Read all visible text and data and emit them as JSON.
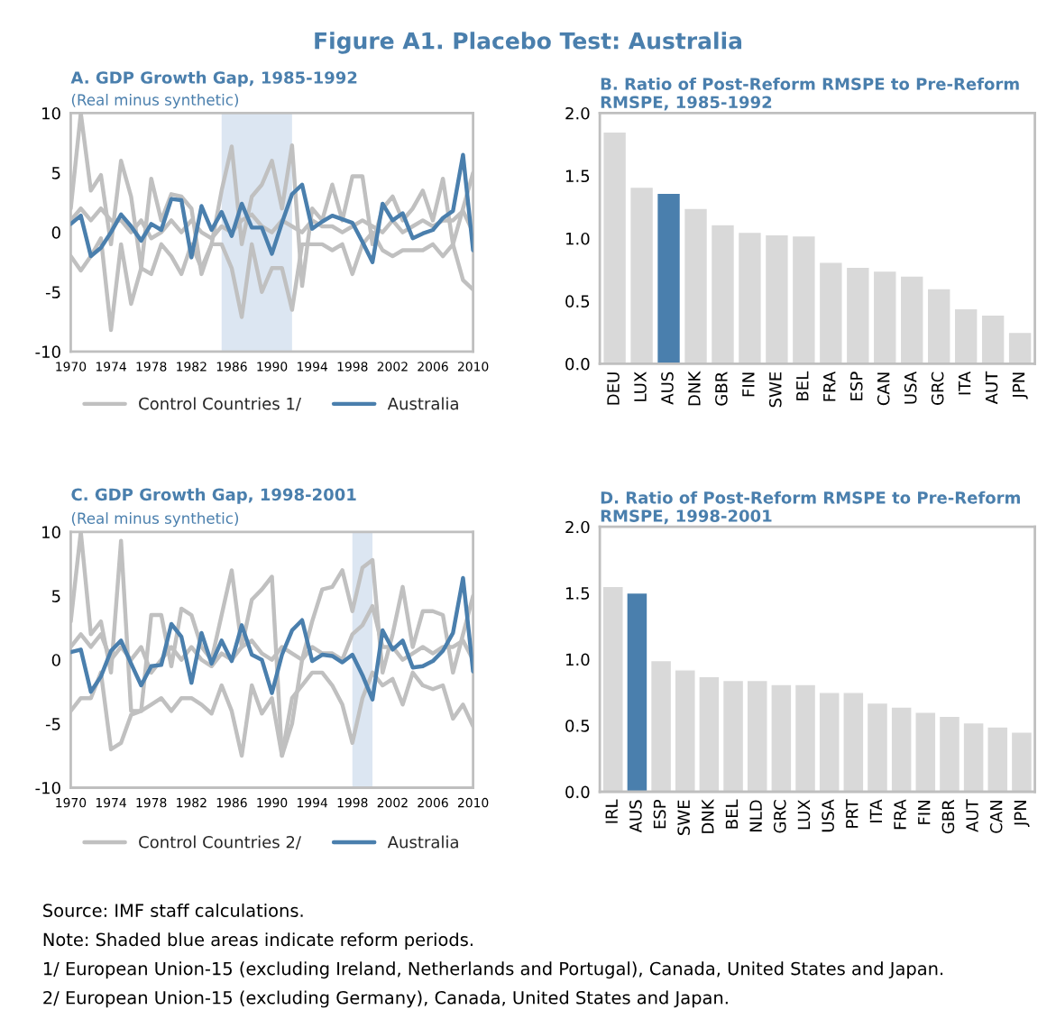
{
  "chart_data": [
    {
      "type": "other",
      "title": "Figure A1. Placebo Test: Australia",
      "annotations": [
        "Source: IMF staff calculations.",
        "Note: Shaded blue areas indicate reform periods.",
        "1/ European Union-15 (excluding Ireland, Netherlands and Portugal), Canada, United States and Japan.",
        "2/ European Union-15 (excluding Germany), Canada, United States and Japan."
      ]
    },
    {
      "type": "line",
      "title": "A. GDP Growth Gap, 1985-1992",
      "subtitle": "(Real minus synthetic)",
      "x": [
        1970,
        1971,
        1972,
        1973,
        1974,
        1975,
        1976,
        1977,
        1978,
        1979,
        1980,
        1981,
        1982,
        1983,
        1984,
        1985,
        1986,
        1987,
        1988,
        1989,
        1990,
        1991,
        1992,
        1993,
        1994,
        1995,
        1996,
        1997,
        1998,
        1999,
        2000,
        2001,
        2002,
        2003,
        2004,
        2005,
        2006,
        2007,
        2008,
        2009,
        2010
      ],
      "series": [
        {
          "name": "Control Countries 1/",
          "color": "#c0c0c0",
          "values": [
            2,
            10,
            3.5,
            4.8,
            -1,
            6,
            3,
            -3,
            4.5,
            1,
            3.2,
            3,
            2,
            -3.5,
            -1,
            3.5,
            7.2,
            -1,
            3,
            4,
            6,
            2,
            7.3,
            -4.5,
            2,
            1,
            4,
            1,
            4.7,
            4.7,
            -1,
            2,
            3,
            1,
            2,
            3.5,
            1,
            4.5,
            -1,
            2,
            5
          ]
        },
        {
          "color": "#c0c0c0",
          "values": [
            -2,
            -3.2,
            -2,
            -0.5,
            -8.2,
            -1,
            -6,
            -3,
            -3.5,
            -1,
            -2,
            -3.5,
            -1,
            -3,
            -1,
            -1,
            -3,
            -7.1,
            -1,
            -5,
            -3,
            -3,
            -6.5,
            -1,
            -1,
            -1,
            -1.5,
            -1,
            -3.5,
            -1,
            0,
            -1.5,
            -2,
            -1.5,
            -1.5,
            -1.5,
            -1,
            -2,
            -1,
            -4,
            -4.8
          ]
        },
        {
          "color": "#c0c0c0",
          "values": [
            1,
            2,
            1,
            2,
            1,
            1,
            0,
            1,
            -0.5,
            0,
            1,
            0,
            1,
            0,
            -0.5,
            0.5,
            0,
            1,
            1.5,
            0.5,
            0,
            1,
            0.5,
            0,
            1,
            0.5,
            0.5,
            0,
            0.5,
            1,
            0.5,
            0,
            1,
            0,
            0.5,
            1,
            0.5,
            1,
            1,
            1.8,
            0
          ]
        },
        {
          "name": "Australia",
          "color": "#4a7fad",
          "values": [
            0.7,
            1.4,
            -2.0,
            -1.3,
            0,
            1.5,
            0.5,
            -0.7,
            0.7,
            0.2,
            2.8,
            2.7,
            -2.1,
            2.2,
            0.2,
            1.7,
            -0.3,
            2.4,
            0.4,
            0.4,
            -1.8,
            0.8,
            3.2,
            4.0,
            0.3,
            0.9,
            1.4,
            1.1,
            0.8,
            -0.8,
            -2.5,
            2.4,
            1.0,
            1.6,
            -0.5,
            -0.1,
            0.2,
            1.2,
            1.8,
            6.5,
            -1.5
          ]
        }
      ],
      "bands": [
        {
          "axis": "x",
          "from": 1985,
          "to": 1992,
          "color": "#dce6f2"
        }
      ],
      "xlim": [
        1970,
        2010
      ],
      "xticks": [
        1970,
        1974,
        1978,
        1982,
        1986,
        1990,
        1994,
        1998,
        2002,
        2006,
        2010
      ],
      "ylim": [
        -10,
        10
      ],
      "yticks": [
        -10,
        -5,
        0,
        5,
        10
      ],
      "grid": false,
      "legend": "bottom"
    },
    {
      "type": "bar",
      "title": "B. Ratio of Post-Reform RMSPE to Pre-Reform RMSPE, 1985-1992",
      "categories": [
        "DEU",
        "LUX",
        "AUS",
        "DNK",
        "GBR",
        "FIN",
        "SWE",
        "BEL",
        "FRA",
        "ESP",
        "CAN",
        "USA",
        "GRC",
        "ITA",
        "AUT",
        "JPN"
      ],
      "values": [
        1.85,
        1.41,
        1.36,
        1.24,
        1.11,
        1.05,
        1.03,
        1.02,
        0.81,
        0.77,
        0.74,
        0.7,
        0.6,
        0.44,
        0.39,
        0.25
      ],
      "colors": [
        "#d9d9d9",
        "#d9d9d9",
        "#4a7fad",
        "#d9d9d9",
        "#d9d9d9",
        "#d9d9d9",
        "#d9d9d9",
        "#d9d9d9",
        "#d9d9d9",
        "#d9d9d9",
        "#d9d9d9",
        "#d9d9d9",
        "#d9d9d9",
        "#d9d9d9",
        "#d9d9d9",
        "#d9d9d9"
      ],
      "ylim": [
        0,
        2
      ],
      "yticks": [
        {
          "value": 0,
          "label": "0.0"
        },
        {
          "value": 0.5,
          "label": "0.5"
        },
        {
          "value": 1,
          "label": "1.0"
        },
        {
          "value": 1.5,
          "label": "1.5"
        },
        {
          "value": 2,
          "label": "2.0"
        }
      ],
      "grid": false
    },
    {
      "type": "line",
      "title": "C. GDP Growth Gap, 1998-2001",
      "subtitle": "(Real minus synthetic)",
      "x": [
        1970,
        1971,
        1972,
        1973,
        1974,
        1975,
        1976,
        1977,
        1978,
        1979,
        1980,
        1981,
        1982,
        1983,
        1984,
        1985,
        1986,
        1987,
        1988,
        1989,
        1990,
        1991,
        1992,
        1993,
        1994,
        1995,
        1996,
        1997,
        1998,
        1999,
        2000,
        2001,
        2002,
        2003,
        2004,
        2005,
        2006,
        2007,
        2008,
        2009,
        2010
      ],
      "series": [
        {
          "name": "Control Countries 2/",
          "color": "#c0c0c0",
          "values": [
            3,
            10,
            2,
            3,
            -1,
            9.3,
            -4,
            -4,
            3.5,
            3.5,
            -0.5,
            4,
            3.5,
            1,
            0,
            3.5,
            7,
            1,
            4.7,
            5.5,
            6.5,
            -7.5,
            -5,
            0,
            3,
            5.5,
            5.7,
            7,
            3.8,
            7.2,
            7.8,
            -1,
            2,
            5.7,
            1,
            3.8,
            3.8,
            3.5,
            -1,
            2,
            5
          ]
        },
        {
          "color": "#c0c0c0",
          "values": [
            -4,
            -3,
            -3,
            -1,
            -7,
            -6.5,
            -4.3,
            -4,
            -3.5,
            -3,
            -4,
            -3,
            -3,
            -3.5,
            -4.2,
            -2,
            -4,
            -7.5,
            -2,
            -4.2,
            -3,
            -7.5,
            -3,
            -2,
            -1,
            -1,
            -2,
            -3.5,
            -6.5,
            -3,
            -1,
            -2,
            -1.5,
            -3.5,
            -1,
            -2,
            -2.3,
            -2,
            -4.6,
            -3.5,
            -5.2
          ]
        },
        {
          "color": "#c0c0c0",
          "values": [
            1,
            2,
            1,
            2,
            0,
            1,
            0,
            1,
            -1,
            0,
            1,
            0,
            1,
            0,
            -0.5,
            0.5,
            0,
            1,
            1.5,
            0.5,
            0,
            1,
            0.5,
            0,
            1,
            0.5,
            0.5,
            0,
            2,
            2.7,
            4.2,
            1,
            1,
            0,
            0.5,
            1,
            0.5,
            1,
            1,
            1.5,
            0
          ]
        },
        {
          "name": "Australia",
          "color": "#4a7fad",
          "values": [
            0.6,
            0.8,
            -2.5,
            -1.3,
            0.7,
            1.5,
            -0.3,
            -2.0,
            -0.5,
            -0.4,
            2.8,
            1.8,
            -1.8,
            2.1,
            -0.3,
            1.5,
            -0.1,
            2.7,
            0.4,
            0,
            -2.6,
            0.4,
            2.3,
            3.1,
            -0.1,
            0.4,
            0.3,
            -0.2,
            0.4,
            -1.2,
            -3.1,
            2.3,
            0.8,
            1.5,
            -0.6,
            -0.5,
            -0.1,
            0.7,
            2.1,
            6.4,
            -0.9
          ]
        }
      ],
      "bands": [
        {
          "axis": "x",
          "from": 1998,
          "to": 2000,
          "color": "#dce6f2"
        }
      ],
      "xlim": [
        1970,
        2010
      ],
      "xticks": [
        1970,
        1974,
        1978,
        1982,
        1986,
        1990,
        1994,
        1998,
        2002,
        2006,
        2010
      ],
      "ylim": [
        -10,
        10
      ],
      "yticks": [
        -10,
        -5,
        0,
        5,
        10
      ],
      "grid": false,
      "legend": "bottom"
    },
    {
      "type": "bar",
      "title": "D. Ratio of Post-Reform RMSPE to Pre-Reform RMSPE, 1998-2001",
      "categories": [
        "IRL",
        "AUS",
        "ESP",
        "SWE",
        "DNK",
        "BEL",
        "NLD",
        "GRC",
        "LUX",
        "USA",
        "PRT",
        "ITA",
        "FRA",
        "FIN",
        "GBR",
        "AUT",
        "CAN",
        "JPN"
      ],
      "values": [
        1.55,
        1.5,
        0.99,
        0.92,
        0.87,
        0.84,
        0.84,
        0.81,
        0.81,
        0.75,
        0.75,
        0.67,
        0.64,
        0.6,
        0.57,
        0.52,
        0.49,
        0.45
      ],
      "colors": [
        "#d9d9d9",
        "#4a7fad",
        "#d9d9d9",
        "#d9d9d9",
        "#d9d9d9",
        "#d9d9d9",
        "#d9d9d9",
        "#d9d9d9",
        "#d9d9d9",
        "#d9d9d9",
        "#d9d9d9",
        "#d9d9d9",
        "#d9d9d9",
        "#d9d9d9",
        "#d9d9d9",
        "#d9d9d9",
        "#d9d9d9",
        "#d9d9d9"
      ],
      "ylim": [
        0,
        2
      ],
      "yticks": [
        {
          "value": 0,
          "label": "0.0"
        },
        {
          "value": 0.5,
          "label": "0.5"
        },
        {
          "value": 1,
          "label": "1.0"
        },
        {
          "value": 1.5,
          "label": "1.5"
        },
        {
          "value": 2,
          "label": "2.0"
        }
      ],
      "grid": false
    }
  ]
}
